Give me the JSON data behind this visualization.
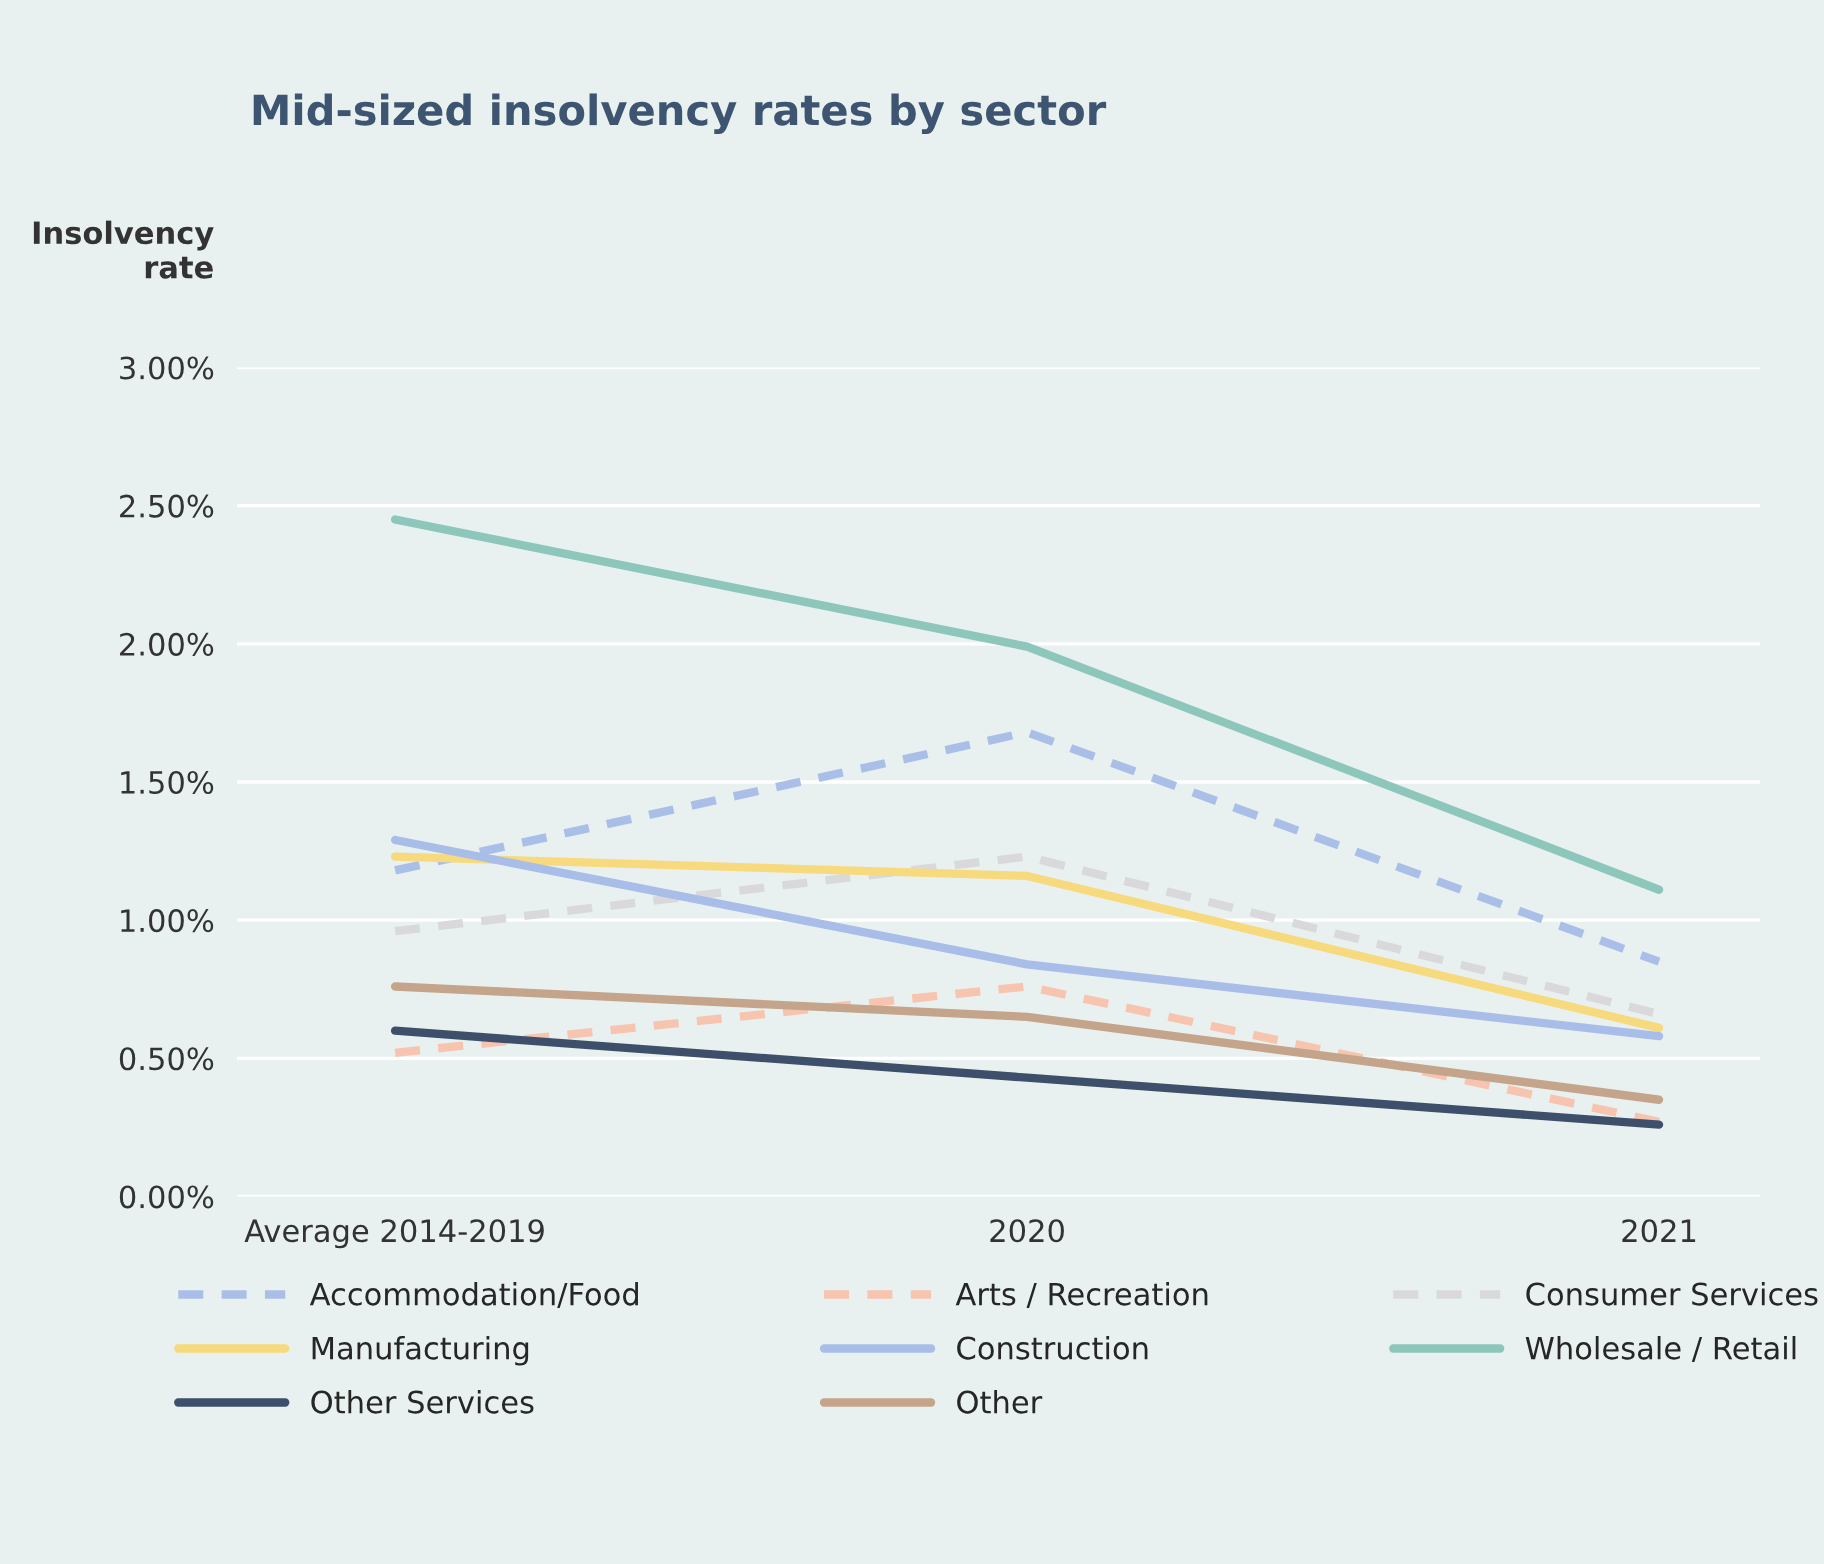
{
  "chart_data": {
    "type": "line",
    "title": "Mid-sized insolvency rates by sector",
    "ylabel": "Insolvency\nrate",
    "categories": [
      "Average 2014-2019",
      "2020",
      "2021"
    ],
    "series": [
      {
        "name": "Accommodation/Food",
        "color": "#a9bfe8",
        "line_style": "dashed",
        "values": [
          1.18,
          1.68,
          0.85
        ]
      },
      {
        "name": "Arts / Recreation",
        "color": "#f7c4b0",
        "line_style": "dashed",
        "values": [
          0.52,
          0.76,
          0.27
        ]
      },
      {
        "name": "Consumer Services",
        "color": "#d9d9dc",
        "line_style": "dashed",
        "values": [
          0.96,
          1.23,
          0.66
        ]
      },
      {
        "name": "Manufacturing",
        "color": "#f7d97e",
        "line_style": "solid",
        "values": [
          1.23,
          1.16,
          0.61
        ]
      },
      {
        "name": "Construction",
        "color": "#a8bde8",
        "line_style": "solid",
        "values": [
          1.29,
          0.84,
          0.58
        ]
      },
      {
        "name": "Wholesale / Retail",
        "color": "#8dc6bb",
        "line_style": "solid",
        "values": [
          2.45,
          1.99,
          1.11
        ]
      },
      {
        "name": "Other Services",
        "color": "#3d4f6b",
        "line_style": "solid",
        "values": [
          0.6,
          0.43,
          0.26
        ]
      },
      {
        "name": "Other",
        "color": "#c4a48a",
        "line_style": "solid",
        "values": [
          0.76,
          0.65,
          0.35
        ]
      }
    ],
    "ylim": [
      0,
      3.0
    ],
    "yticks": [
      {
        "value": 0,
        "label": "0.00%"
      },
      {
        "value": 0.5,
        "label": "0.50%"
      },
      {
        "value": 1.0,
        "label": "1.00%"
      },
      {
        "value": 1.5,
        "label": "1.50%"
      },
      {
        "value": 2.0,
        "label": "2.00%"
      },
      {
        "value": 2.5,
        "label": "2.50%"
      },
      {
        "value": 3.0,
        "label": "3.00%"
      }
    ],
    "grid": "y",
    "legend": "bottom",
    "marker": "none"
  }
}
